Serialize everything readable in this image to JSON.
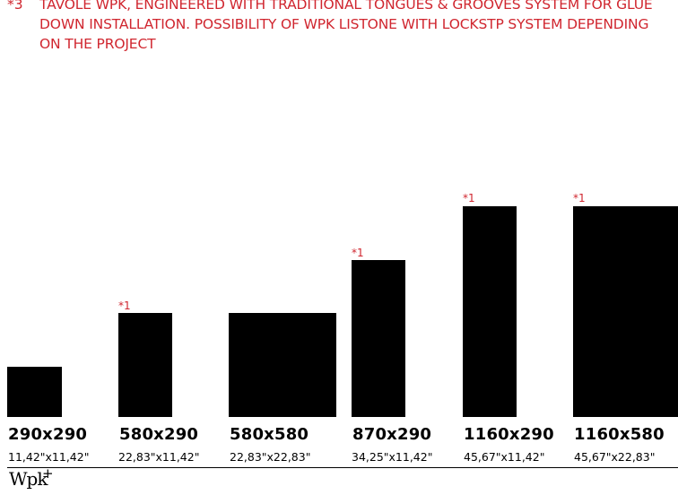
{
  "note": {
    "marker": "*3",
    "text": "TAVOLE WPK, ENGINEERED WITH TRADITIONAL TONGUES & GROOVES SYSTEM FOR GLUE DOWN INSTALLATION. POSSIBILITY OF WPK LISTONE WITH LOCKSTP SYSTEM DEPENDING ON THE PROJECT"
  },
  "tiles": [
    {
      "size": "290x290",
      "inches": "11,42\"x11,42\"",
      "marker": ""
    },
    {
      "size": "580x290",
      "inches": "22,83\"x11,42\"",
      "marker": "*1"
    },
    {
      "size": "580x580",
      "inches": "22,83\"x22,83\"",
      "marker": ""
    },
    {
      "size": "870x290",
      "inches": "34,25\"x11,42\"",
      "marker": "*1"
    },
    {
      "size": "1160x290",
      "inches": "45,67\"x11,42\"",
      "marker": "*1"
    },
    {
      "size": "1160x580",
      "inches": "45,67\"x22,83\"",
      "marker": "*1"
    }
  ],
  "logo": {
    "text": "Wpk",
    "superscript": "+"
  },
  "colors": {
    "accent": "#d0262f",
    "tile": "#000000"
  }
}
